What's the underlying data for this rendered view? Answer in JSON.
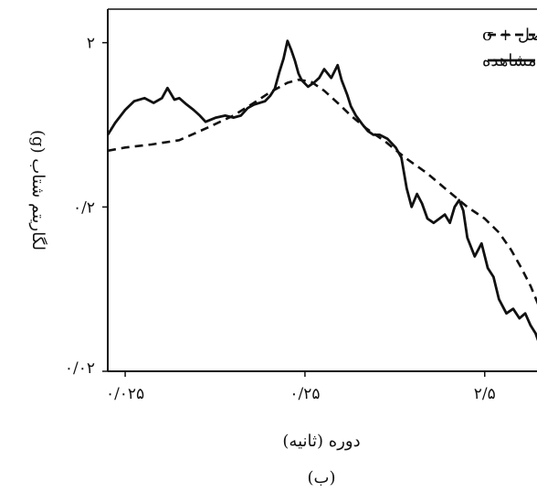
{
  "chart_data": {
    "type": "line",
    "xscale": "log",
    "yscale": "log",
    "xlim": [
      0.02,
      5
    ],
    "ylim": [
      0.02,
      3.2
    ],
    "grid": false,
    "legend_position": "top-right",
    "xlabel": "دوره (ثانیه)",
    "ylabel": "لگاریتم شتاب (g)",
    "caption": "(ب)",
    "x_ticks": [
      {
        "value": 0.025,
        "label": "۰/۰۲۵"
      },
      {
        "value": 0.25,
        "label": "۰/۲۵"
      },
      {
        "value": 2.5,
        "label": "۲/۵"
      }
    ],
    "y_ticks": [
      {
        "value": 0.02,
        "label": "۰/۰۲"
      },
      {
        "value": 0.2,
        "label": "۰/۲"
      },
      {
        "value": 2,
        "label": "۲"
      }
    ],
    "series": [
      {
        "name": "حدفاصل + σ",
        "style": "dashed",
        "color": "#111111",
        "x": [
          0.02,
          0.025,
          0.035,
          0.05,
          0.07,
          0.1,
          0.13,
          0.16,
          0.2,
          0.23,
          0.27,
          0.32,
          0.38,
          0.45,
          0.55,
          0.7,
          0.9,
          1.2,
          1.5,
          2.0,
          2.5,
          3.0,
          3.5,
          4.0,
          4.5,
          5.0
        ],
        "y": [
          0.44,
          0.46,
          0.48,
          0.51,
          0.6,
          0.72,
          0.86,
          1.0,
          1.14,
          1.19,
          1.16,
          1.02,
          0.86,
          0.72,
          0.6,
          0.5,
          0.4,
          0.32,
          0.26,
          0.2,
          0.17,
          0.14,
          0.11,
          0.085,
          0.066,
          0.05
        ]
      },
      {
        "name": "مشاهده",
        "style": "solid",
        "color": "#111111",
        "x": [
          0.02,
          0.022,
          0.025,
          0.028,
          0.032,
          0.036,
          0.04,
          0.043,
          0.047,
          0.05,
          0.055,
          0.06,
          0.065,
          0.07,
          0.08,
          0.09,
          0.1,
          0.11,
          0.12,
          0.13,
          0.15,
          0.16,
          0.17,
          0.18,
          0.19,
          0.2,
          0.21,
          0.22,
          0.23,
          0.24,
          0.26,
          0.28,
          0.3,
          0.32,
          0.35,
          0.38,
          0.4,
          0.43,
          0.45,
          0.48,
          0.52,
          0.56,
          0.6,
          0.65,
          0.72,
          0.8,
          0.86,
          0.92,
          0.98,
          1.05,
          1.12,
          1.2,
          1.3,
          1.4,
          1.5,
          1.6,
          1.7,
          1.8,
          1.9,
          2.0,
          2.2,
          2.4,
          2.6,
          2.8,
          3.0,
          3.3,
          3.6,
          3.9,
          4.2,
          4.5,
          4.8,
          5.0
        ],
        "y": [
          0.55,
          0.65,
          0.78,
          0.88,
          0.92,
          0.86,
          0.92,
          1.06,
          0.9,
          0.92,
          0.84,
          0.78,
          0.72,
          0.66,
          0.7,
          0.72,
          0.7,
          0.72,
          0.8,
          0.84,
          0.88,
          0.95,
          1.05,
          1.32,
          1.6,
          2.05,
          1.8,
          1.55,
          1.3,
          1.18,
          1.08,
          1.14,
          1.22,
          1.38,
          1.22,
          1.46,
          1.18,
          0.96,
          0.82,
          0.72,
          0.64,
          0.58,
          0.55,
          0.55,
          0.52,
          0.46,
          0.4,
          0.26,
          0.2,
          0.24,
          0.21,
          0.17,
          0.16,
          0.17,
          0.18,
          0.16,
          0.2,
          0.22,
          0.19,
          0.13,
          0.1,
          0.12,
          0.085,
          0.075,
          0.055,
          0.045,
          0.048,
          0.042,
          0.045,
          0.038,
          0.034,
          0.03
        ]
      }
    ]
  }
}
